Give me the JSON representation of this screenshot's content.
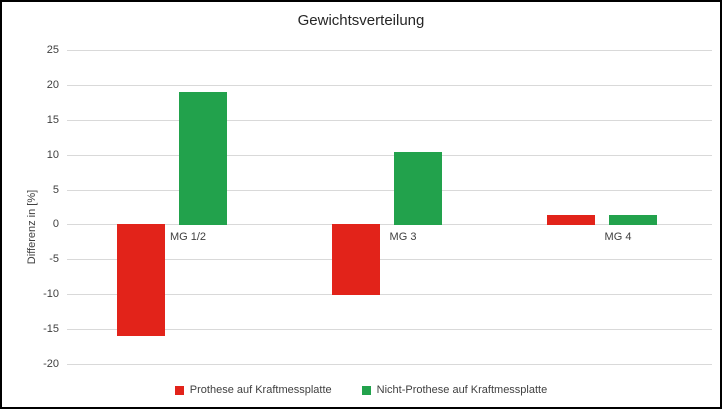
{
  "chart_data": {
    "type": "bar",
    "title": "Gewichtsverteilung",
    "xlabel": "",
    "ylabel": "Differenz in [%]",
    "categories": [
      "MG 1/2",
      "MG 3",
      "MG 4"
    ],
    "series": [
      {
        "name": "Prothese auf Kraftmessplatte",
        "color": "#e2231a",
        "values": [
          -16,
          -10.2,
          1.4
        ]
      },
      {
        "name": "Nicht-Prothese auf Kraftmessplatte",
        "color": "#22a24c",
        "values": [
          19,
          10.4,
          1.4
        ]
      }
    ],
    "ylim": [
      -20,
      25
    ],
    "ytick_step": 5,
    "grid": true,
    "legend_position": "bottom",
    "gridline_color": "#d9d9d9",
    "text_color": "#404040",
    "border_color": "#000000"
  }
}
